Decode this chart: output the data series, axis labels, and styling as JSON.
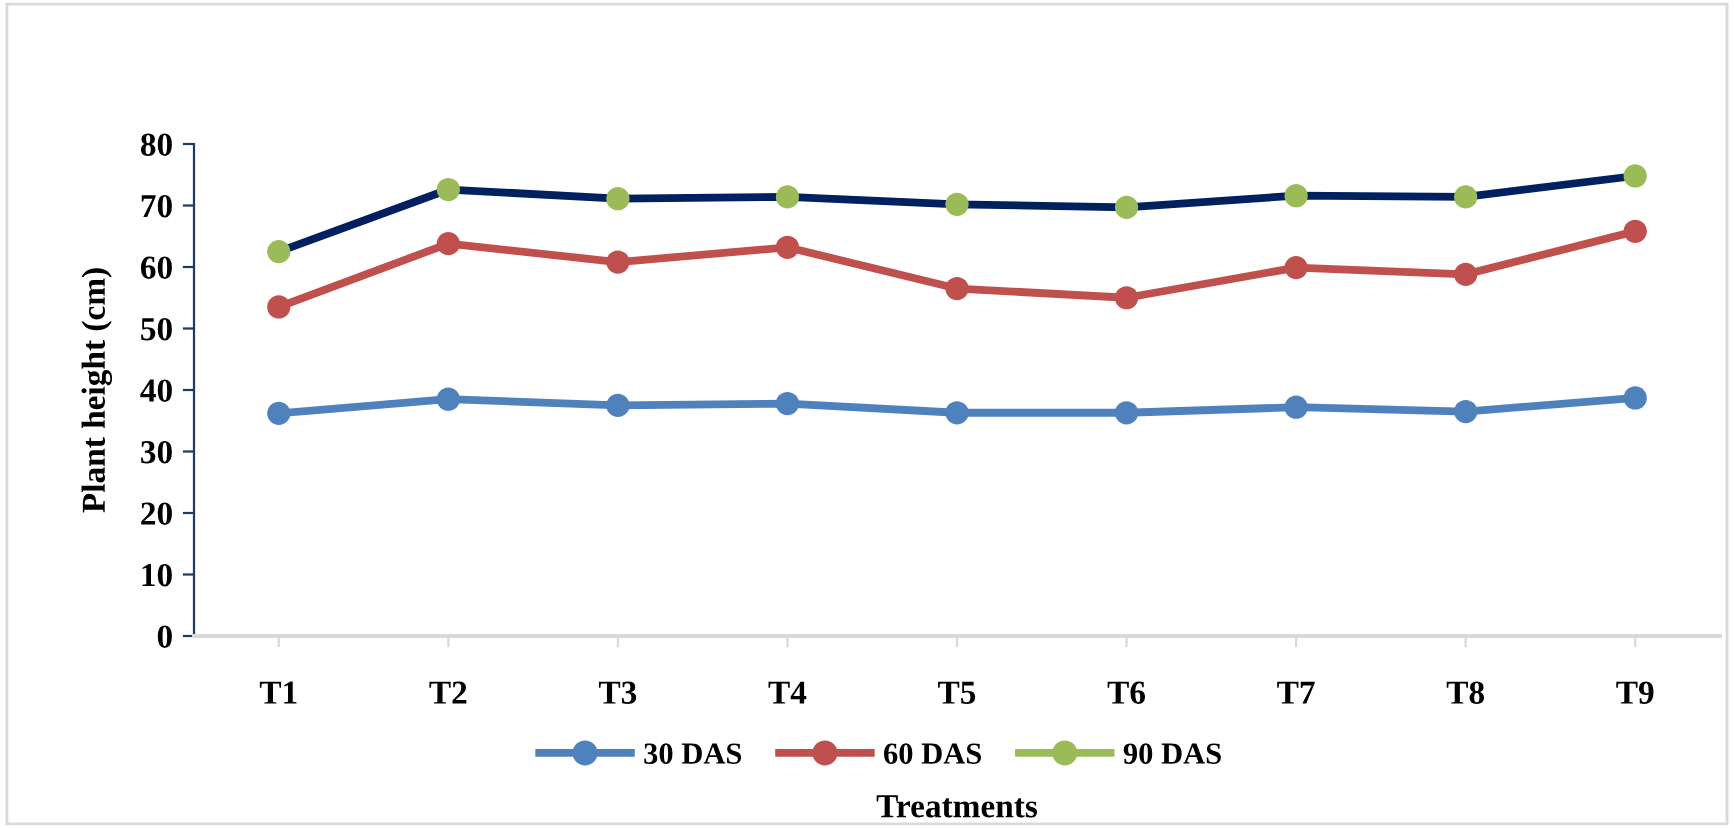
{
  "chart_data": {
    "type": "line",
    "xlabel": "Treatments",
    "ylabel": "Plant height (cm)",
    "categories": [
      "T1",
      "T2",
      "T3",
      "T4",
      "T5",
      "T6",
      "T7",
      "T8",
      "T9"
    ],
    "series": [
      {
        "name": "30 DAS",
        "color": "#4f81bd",
        "values": [
          36.2,
          38.5,
          37.5,
          37.8,
          36.3,
          36.3,
          37.2,
          36.5,
          38.7
        ]
      },
      {
        "name": "60 DAS",
        "color": "#c0504d",
        "values": [
          53.5,
          63.8,
          60.8,
          63.2,
          56.5,
          55.0,
          59.9,
          58.8,
          65.8
        ]
      },
      {
        "name": "90 DAS",
        "color": "#002060",
        "colors": [
          "#9bbb59",
          "#9bbb59",
          "#9bbb59",
          "#9bbb59",
          "#9bbb59",
          "#9bbb59",
          "#9bbb59",
          "#9bbb59",
          "#9bbb59"
        ],
        "values": [
          62.5,
          72.6,
          71.1,
          71.4,
          70.2,
          69.7,
          71.6,
          71.4,
          74.8
        ]
      }
    ],
    "ylim": [
      0,
      80
    ],
    "yticks": [
      0,
      10,
      20,
      30,
      40,
      50,
      60,
      70,
      80
    ],
    "grid": false,
    "legend": "bottom",
    "marker": "circle",
    "line_style": "solid"
  }
}
